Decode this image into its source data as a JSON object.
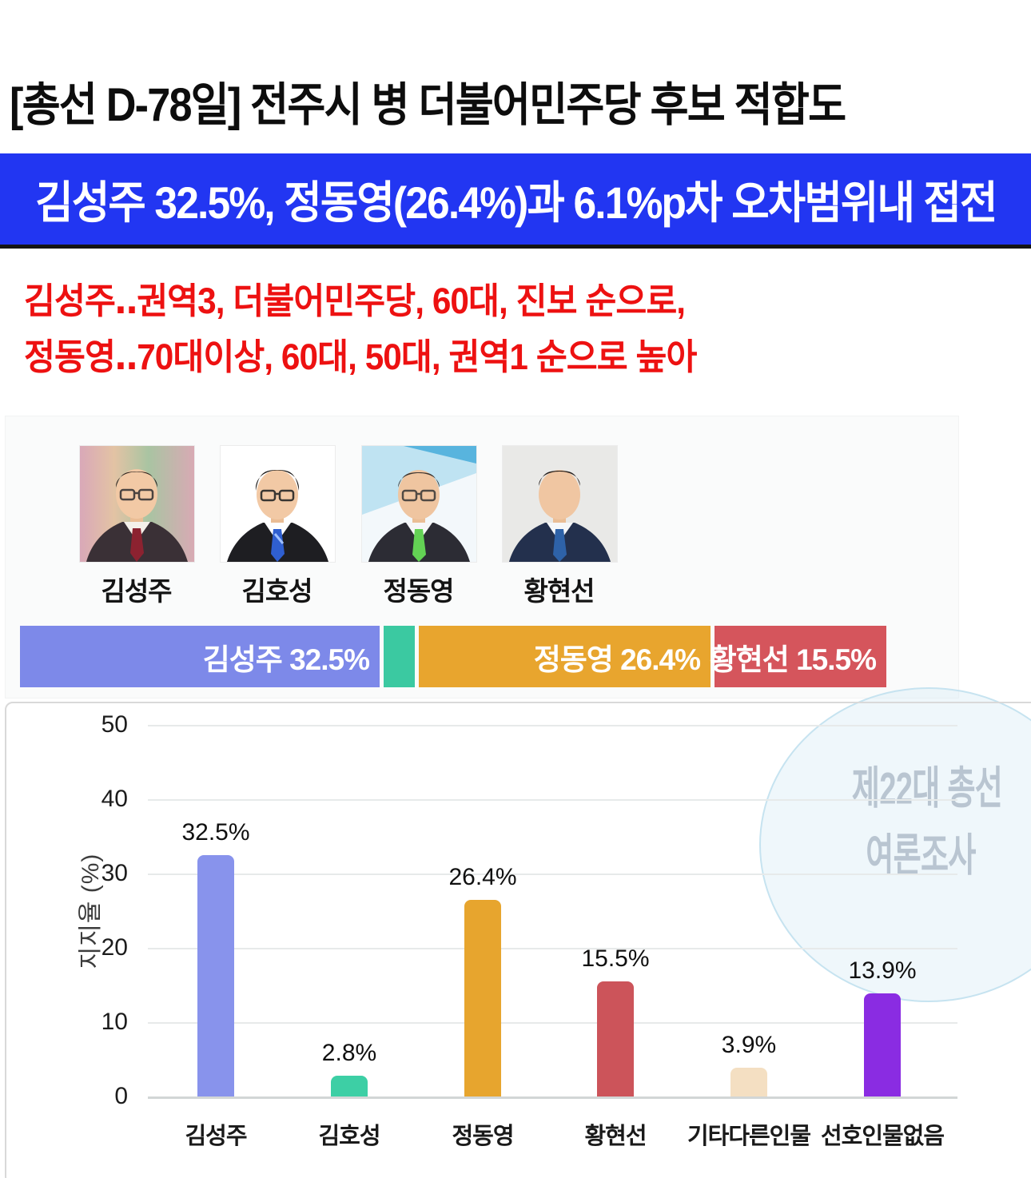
{
  "page": {
    "title": "[총선 D-78일] 전주시 병 더불어민주당 후보 적합도",
    "banner_text": "김성주 32.5%, 정동영(26.4%)과 6.1%p차 오차범위내 접전",
    "key_findings_line1": "김성주‥권역3, 더불어민주당, 60대, 진보 순으로,",
    "key_findings_line2": "정동영‥70대이상, 60대, 50대, 권역1 순으로 높아"
  },
  "colors": {
    "banner_bg": "#2236f2",
    "banner_text": "#ffffff",
    "key_findings_text": "#ed1111",
    "headline_text": "#0d0d0d",
    "watermark_text": "#b9c5d1"
  },
  "candidates": [
    {
      "name": "김성주"
    },
    {
      "name": "김호성"
    },
    {
      "name": "정동영"
    },
    {
      "name": "황현선"
    }
  ],
  "stacked_bar": {
    "unit": "%",
    "segments": [
      {
        "label": "김성주",
        "value": 32.5,
        "display": "김성주 32.5%",
        "color": "#7d89e9",
        "show_label": true
      },
      {
        "label": "김호성",
        "value": 2.8,
        "display": "",
        "color": "#3bc9a1",
        "show_label": false
      },
      {
        "label": "정동영",
        "value": 26.4,
        "display": "정동영 26.4%",
        "color": "#e8a52e",
        "show_label": true
      },
      {
        "label": "황현선",
        "value": 15.5,
        "display": "황현선 15.5%",
        "color": "#d5555c",
        "show_label": true
      }
    ]
  },
  "chart_data": {
    "type": "bar",
    "title": "",
    "categories": [
      "김성주",
      "김호성",
      "정동영",
      "황현선",
      "기타다른인물",
      "선호인물없음"
    ],
    "values": [
      32.5,
      2.8,
      26.4,
      15.5,
      3.9,
      13.9
    ],
    "value_labels": [
      "32.5%",
      "2.8%",
      "26.4%",
      "15.5%",
      "3.9%",
      "13.9%"
    ],
    "bar_colors": [
      "#8893ec",
      "#3dcfa5",
      "#e7a52e",
      "#cc545a",
      "#f4dfc2",
      "#8a2ce2"
    ],
    "xlabel": "",
    "ylabel": "지지율 (%)",
    "yticks": [
      0,
      10,
      20,
      30,
      40,
      50
    ],
    "ylim": [
      0,
      50
    ],
    "grid": true,
    "legend": false,
    "watermark_line1": "제22대 총선",
    "watermark_line2": "여론조사"
  }
}
